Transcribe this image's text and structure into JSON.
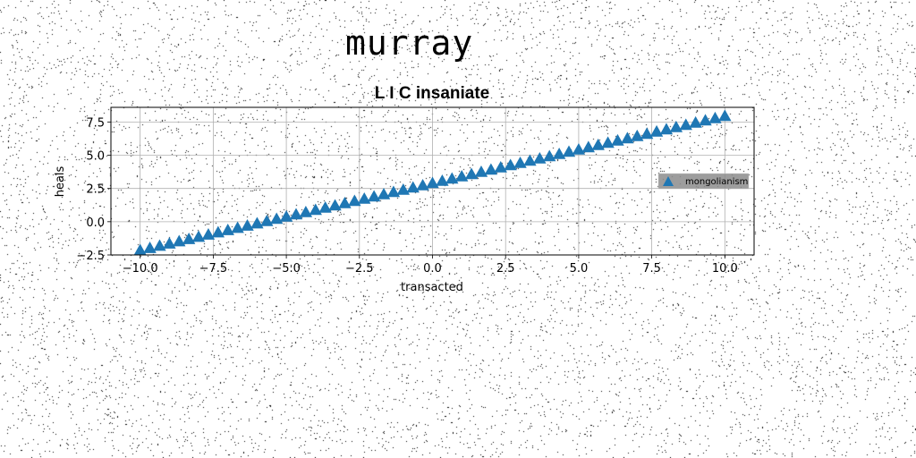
{
  "figure": {
    "suptitle": "murray"
  },
  "chart_data": {
    "type": "scatter",
    "title": "L I C insaniate",
    "xlabel": "transacted",
    "ylabel": "heals",
    "xlim": [
      -11.0,
      11.0
    ],
    "ylim": [
      -2.5,
      8.6
    ],
    "xticks": [
      -10.0,
      -7.5,
      -5.0,
      -2.5,
      0.0,
      2.5,
      5.0,
      7.5,
      10.0
    ],
    "xtick_labels": [
      "−10.0",
      "−7.5",
      "−5.0",
      "−2.5",
      "0.0",
      "2.5",
      "5.0",
      "7.5",
      "10.0"
    ],
    "yticks": [
      -2.5,
      0.0,
      2.5,
      5.0,
      7.5
    ],
    "ytick_labels": [
      "−2.5",
      "0.0",
      "2.5",
      "5.0",
      "7.5"
    ],
    "grid": true,
    "legend_position": "center-right",
    "series": [
      {
        "name": "mongolianism",
        "marker": "triangle-up",
        "color": "#1f77b4",
        "x_start": -10.0,
        "x_end": 10.0,
        "n_points": 61,
        "y_start": -2.2,
        "y_end": 7.9
      }
    ]
  }
}
